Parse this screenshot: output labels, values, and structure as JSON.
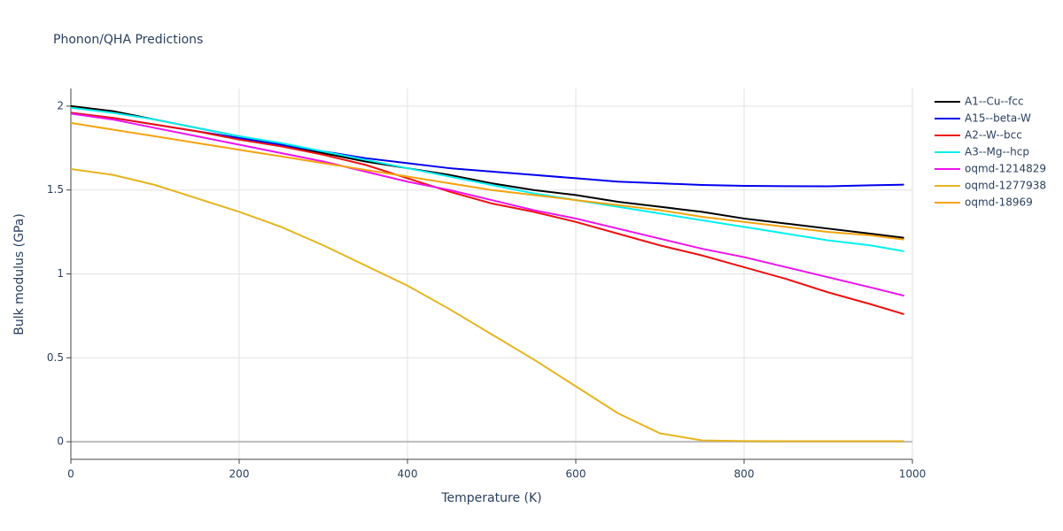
{
  "chart_data": {
    "type": "line",
    "title": "Phonon/QHA Predictions",
    "x_label": "Temperature (K)",
    "y_label": "Bulk modulus (GPa)",
    "x": [
      0,
      50,
      100,
      150,
      200,
      250,
      300,
      350,
      400,
      450,
      500,
      550,
      600,
      650,
      700,
      750,
      800,
      850,
      900,
      950,
      990
    ],
    "series": [
      {
        "name": "A1--Cu--fcc",
        "color": "#000000",
        "values": [
          2.0,
          1.97,
          1.92,
          1.87,
          1.82,
          1.77,
          1.72,
          1.67,
          1.63,
          1.59,
          1.54,
          1.5,
          1.47,
          1.43,
          1.4,
          1.37,
          1.33,
          1.3,
          1.27,
          1.24,
          1.215
        ]
      },
      {
        "name": "A15--beta-W",
        "color": "#0000ee",
        "values": [
          1.96,
          1.93,
          1.89,
          1.85,
          1.81,
          1.77,
          1.73,
          1.69,
          1.66,
          1.63,
          1.61,
          1.59,
          1.57,
          1.55,
          1.54,
          1.53,
          1.525,
          1.523,
          1.522,
          1.528,
          1.532
        ]
      },
      {
        "name": "A2--W--bcc",
        "color": "#ee1111",
        "values": [
          1.96,
          1.93,
          1.89,
          1.85,
          1.8,
          1.76,
          1.71,
          1.65,
          1.57,
          1.49,
          1.42,
          1.37,
          1.31,
          1.24,
          1.17,
          1.11,
          1.04,
          0.97,
          0.89,
          0.82,
          0.76
        ]
      },
      {
        "name": "A3--Mg--hcp",
        "color": "#00f0f0",
        "values": [
          1.99,
          1.96,
          1.92,
          1.87,
          1.82,
          1.78,
          1.73,
          1.68,
          1.63,
          1.58,
          1.53,
          1.48,
          1.44,
          1.4,
          1.36,
          1.32,
          1.28,
          1.24,
          1.2,
          1.17,
          1.135
        ]
      },
      {
        "name": "oqmd-1214829",
        "color": "#ee11ee",
        "values": [
          1.955,
          1.92,
          1.87,
          1.82,
          1.77,
          1.72,
          1.67,
          1.61,
          1.55,
          1.5,
          1.44,
          1.38,
          1.33,
          1.27,
          1.21,
          1.15,
          1.1,
          1.04,
          0.98,
          0.92,
          0.87
        ]
      },
      {
        "name": "oqmd-1277938",
        "color": "#e6b41e",
        "values": [
          1.625,
          1.59,
          1.53,
          1.45,
          1.37,
          1.28,
          1.17,
          1.05,
          0.93,
          0.79,
          0.64,
          0.49,
          0.33,
          0.17,
          0.05,
          0.008,
          0.004,
          0.003,
          0.003,
          0.003,
          0.003
        ]
      },
      {
        "name": "oqmd-18969",
        "color": "#f5a30f",
        "values": [
          1.9,
          1.86,
          1.82,
          1.78,
          1.74,
          1.7,
          1.66,
          1.62,
          1.58,
          1.54,
          1.5,
          1.47,
          1.44,
          1.41,
          1.38,
          1.34,
          1.31,
          1.28,
          1.25,
          1.23,
          1.205
        ]
      }
    ],
    "xlim": [
      0,
      1000
    ],
    "xticks": [
      0,
      200,
      400,
      600,
      800,
      1000
    ],
    "ylim": [
      -0.105,
      2.105
    ],
    "yticks": [
      0,
      0.5,
      1,
      1.5,
      2
    ],
    "grid": true,
    "legend": "right"
  }
}
